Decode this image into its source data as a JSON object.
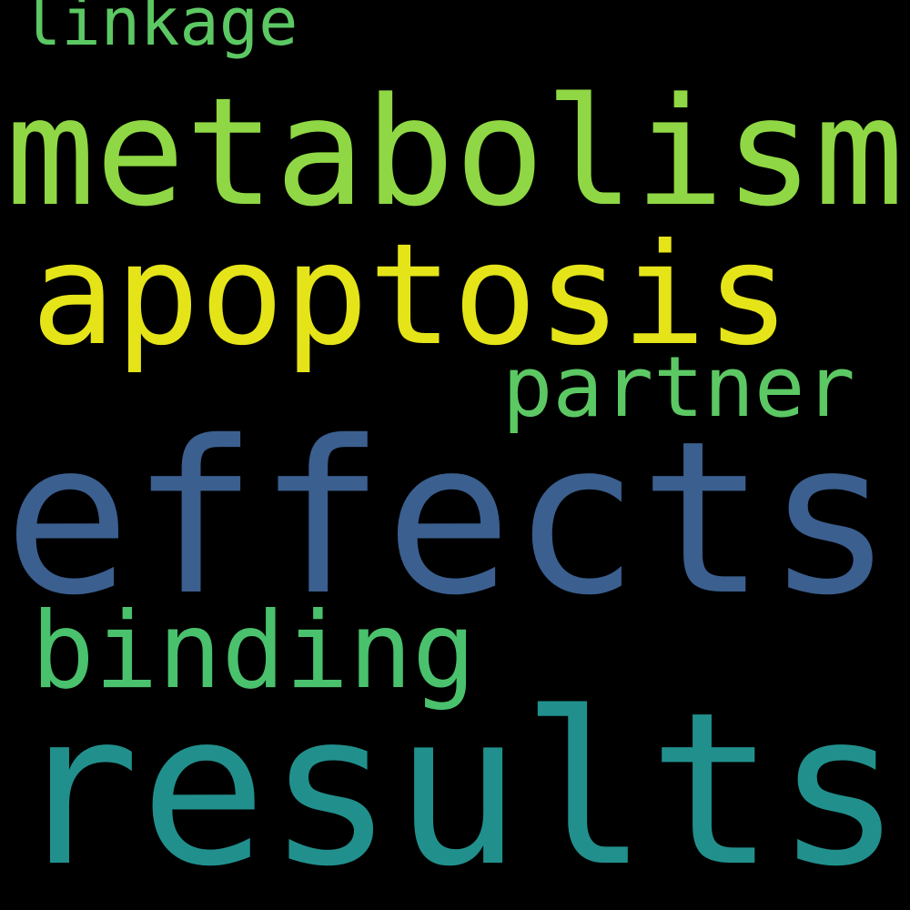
{
  "words": [
    {
      "text": "linkage",
      "color": "#5cc863"
    },
    {
      "text": "metabolism",
      "color": "#8fd744"
    },
    {
      "text": "apoptosis",
      "color": "#e5e419"
    },
    {
      "text": "partner",
      "color": "#5cc863"
    },
    {
      "text": "effects",
      "color": "#3b5f8f"
    },
    {
      "text": "binding",
      "color": "#4ac16d"
    },
    {
      "text": "results",
      "color": "#21908d"
    }
  ]
}
